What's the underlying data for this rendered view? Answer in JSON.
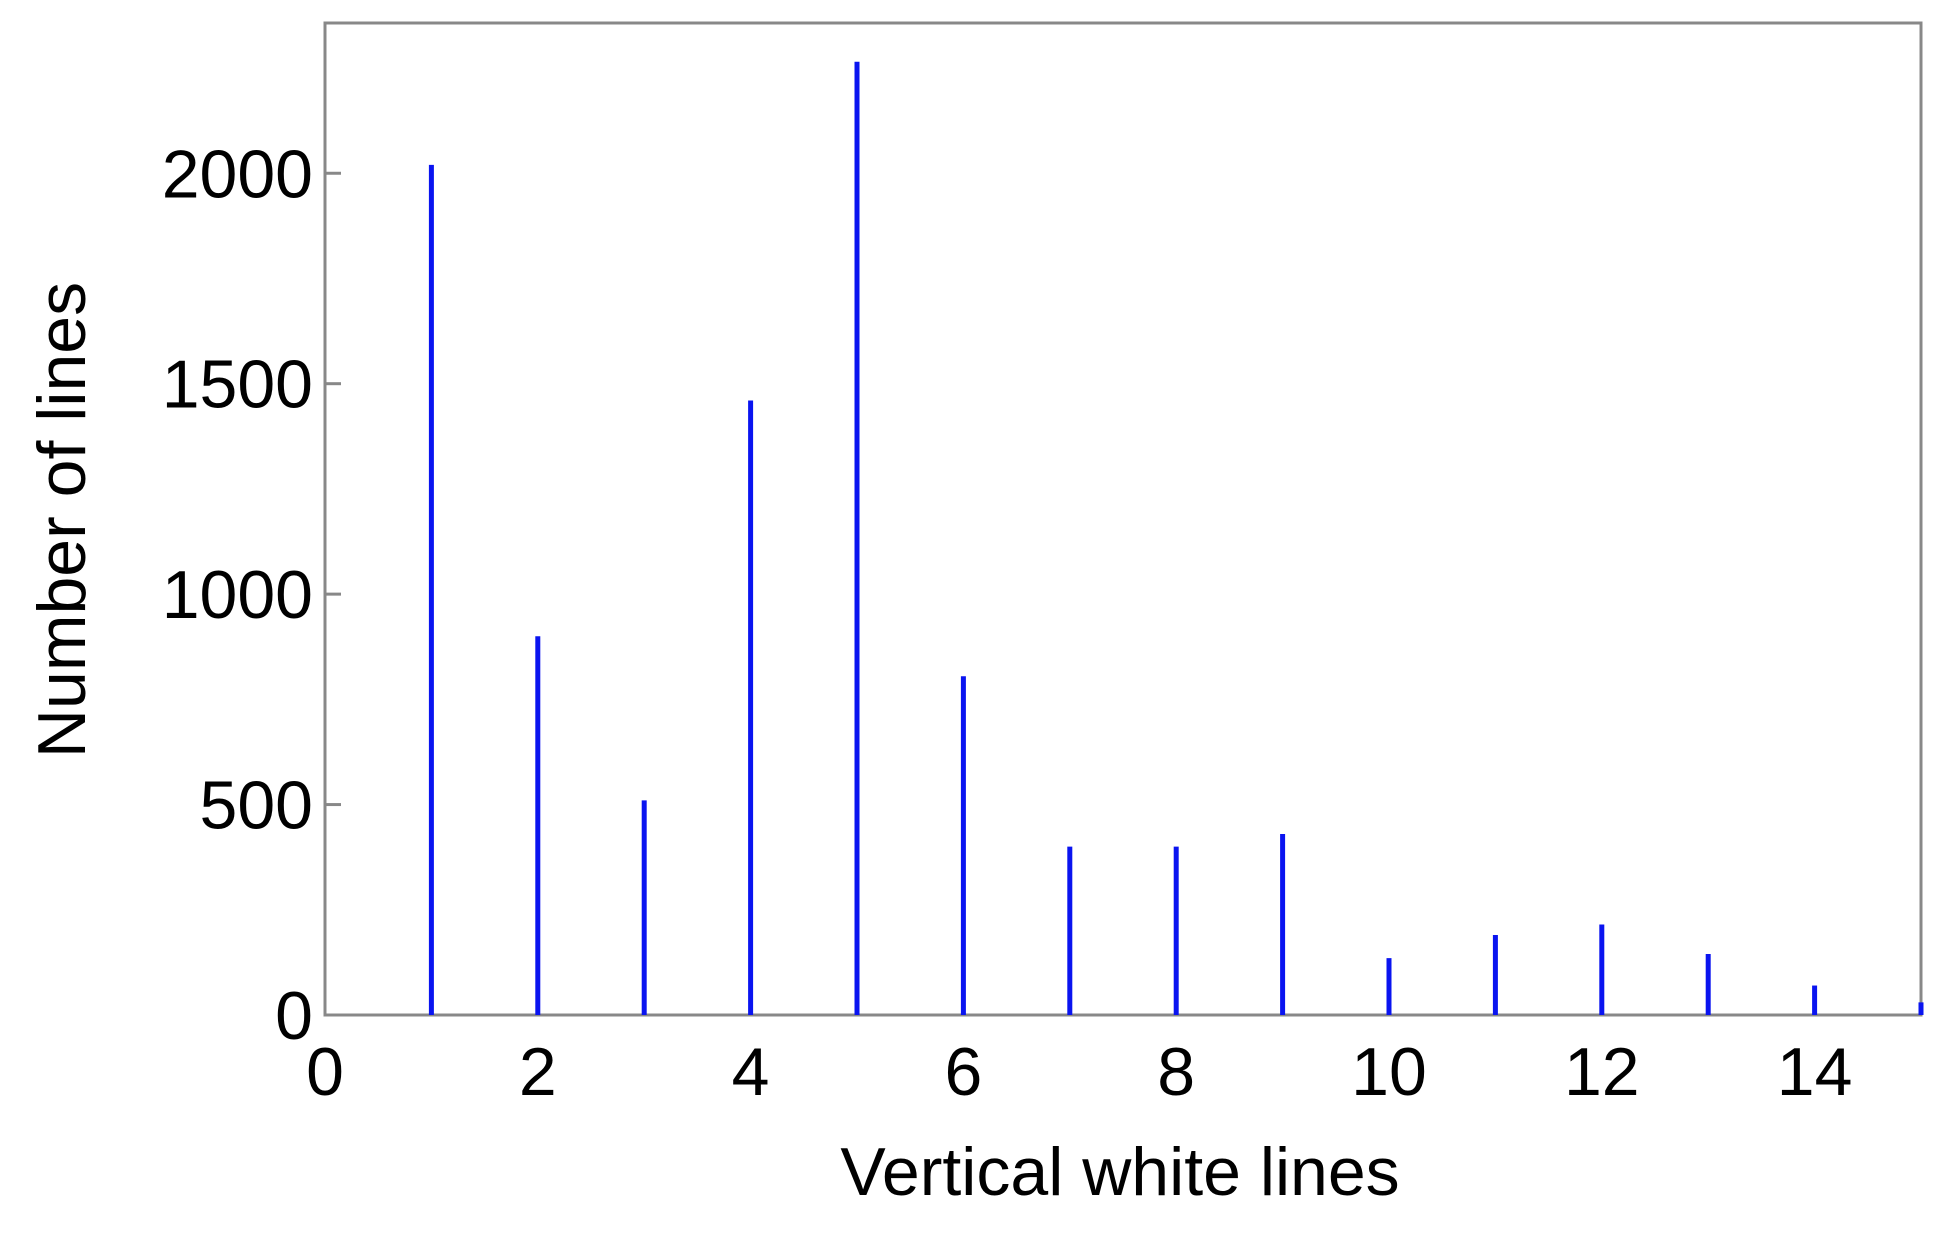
{
  "chart_data": {
    "type": "stem",
    "x_label": "Vertical white lines",
    "y_label": "Number of lines",
    "x": [
      1,
      2,
      3,
      4,
      5,
      6,
      7,
      8,
      9,
      10,
      11,
      12,
      13,
      14,
      15
    ],
    "values": [
      2020,
      900,
      510,
      1460,
      2265,
      805,
      400,
      400,
      430,
      135,
      190,
      215,
      145,
      70,
      30
    ],
    "color": "#0a14f0",
    "xlim": [
      0,
      15
    ],
    "xticks": [
      0,
      2,
      4,
      6,
      8,
      10,
      12,
      14
    ],
    "ylim": [
      0,
      2357
    ],
    "yticks": [
      0,
      500,
      1000,
      1500,
      2000
    ],
    "grid": false
  }
}
